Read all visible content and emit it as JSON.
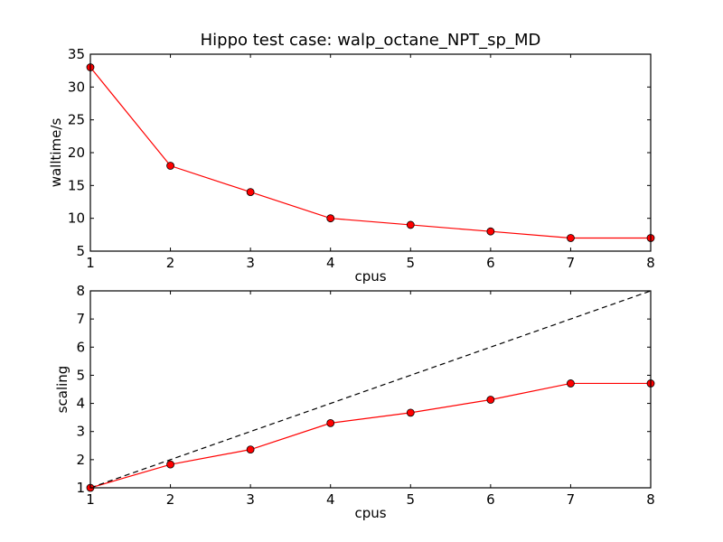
{
  "chart_data": [
    {
      "type": "line",
      "title": "Hippo test case: walp_octane_NPT_sp_MD",
      "xlabel": "cpus",
      "ylabel": "walltime/s",
      "xlim": [
        1,
        8
      ],
      "ylim": [
        5,
        35
      ],
      "xticks": [
        "1",
        "2",
        "3",
        "4",
        "5",
        "6",
        "7",
        "8"
      ],
      "yticks": [
        "5",
        "10",
        "15",
        "20",
        "25",
        "30",
        "35"
      ],
      "grid": false,
      "series": [
        {
          "color": "#ff0000",
          "marker": "circle",
          "x": [
            1,
            2,
            3,
            4,
            5,
            6,
            7,
            8
          ],
          "y": [
            33,
            18,
            14,
            10,
            9,
            8,
            7,
            7
          ]
        }
      ]
    },
    {
      "type": "line",
      "xlabel": "cpus",
      "ylabel": "scaling",
      "xlim": [
        1,
        8
      ],
      "ylim": [
        1,
        8
      ],
      "xticks": [
        "1",
        "2",
        "3",
        "4",
        "5",
        "6",
        "7",
        "8"
      ],
      "yticks": [
        "1",
        "2",
        "3",
        "4",
        "5",
        "6",
        "7",
        "8"
      ],
      "grid": false,
      "series": [
        {
          "color": "#ff0000",
          "marker": "circle",
          "x": [
            1,
            2,
            3,
            4,
            5,
            6,
            7,
            8
          ],
          "y": [
            1.0,
            1.83,
            2.36,
            3.3,
            3.67,
            4.13,
            4.71,
            4.71
          ]
        },
        {
          "color": "#000000",
          "linestyle": "dashed",
          "x": [
            1,
            8
          ],
          "y": [
            1,
            8
          ]
        }
      ]
    }
  ]
}
